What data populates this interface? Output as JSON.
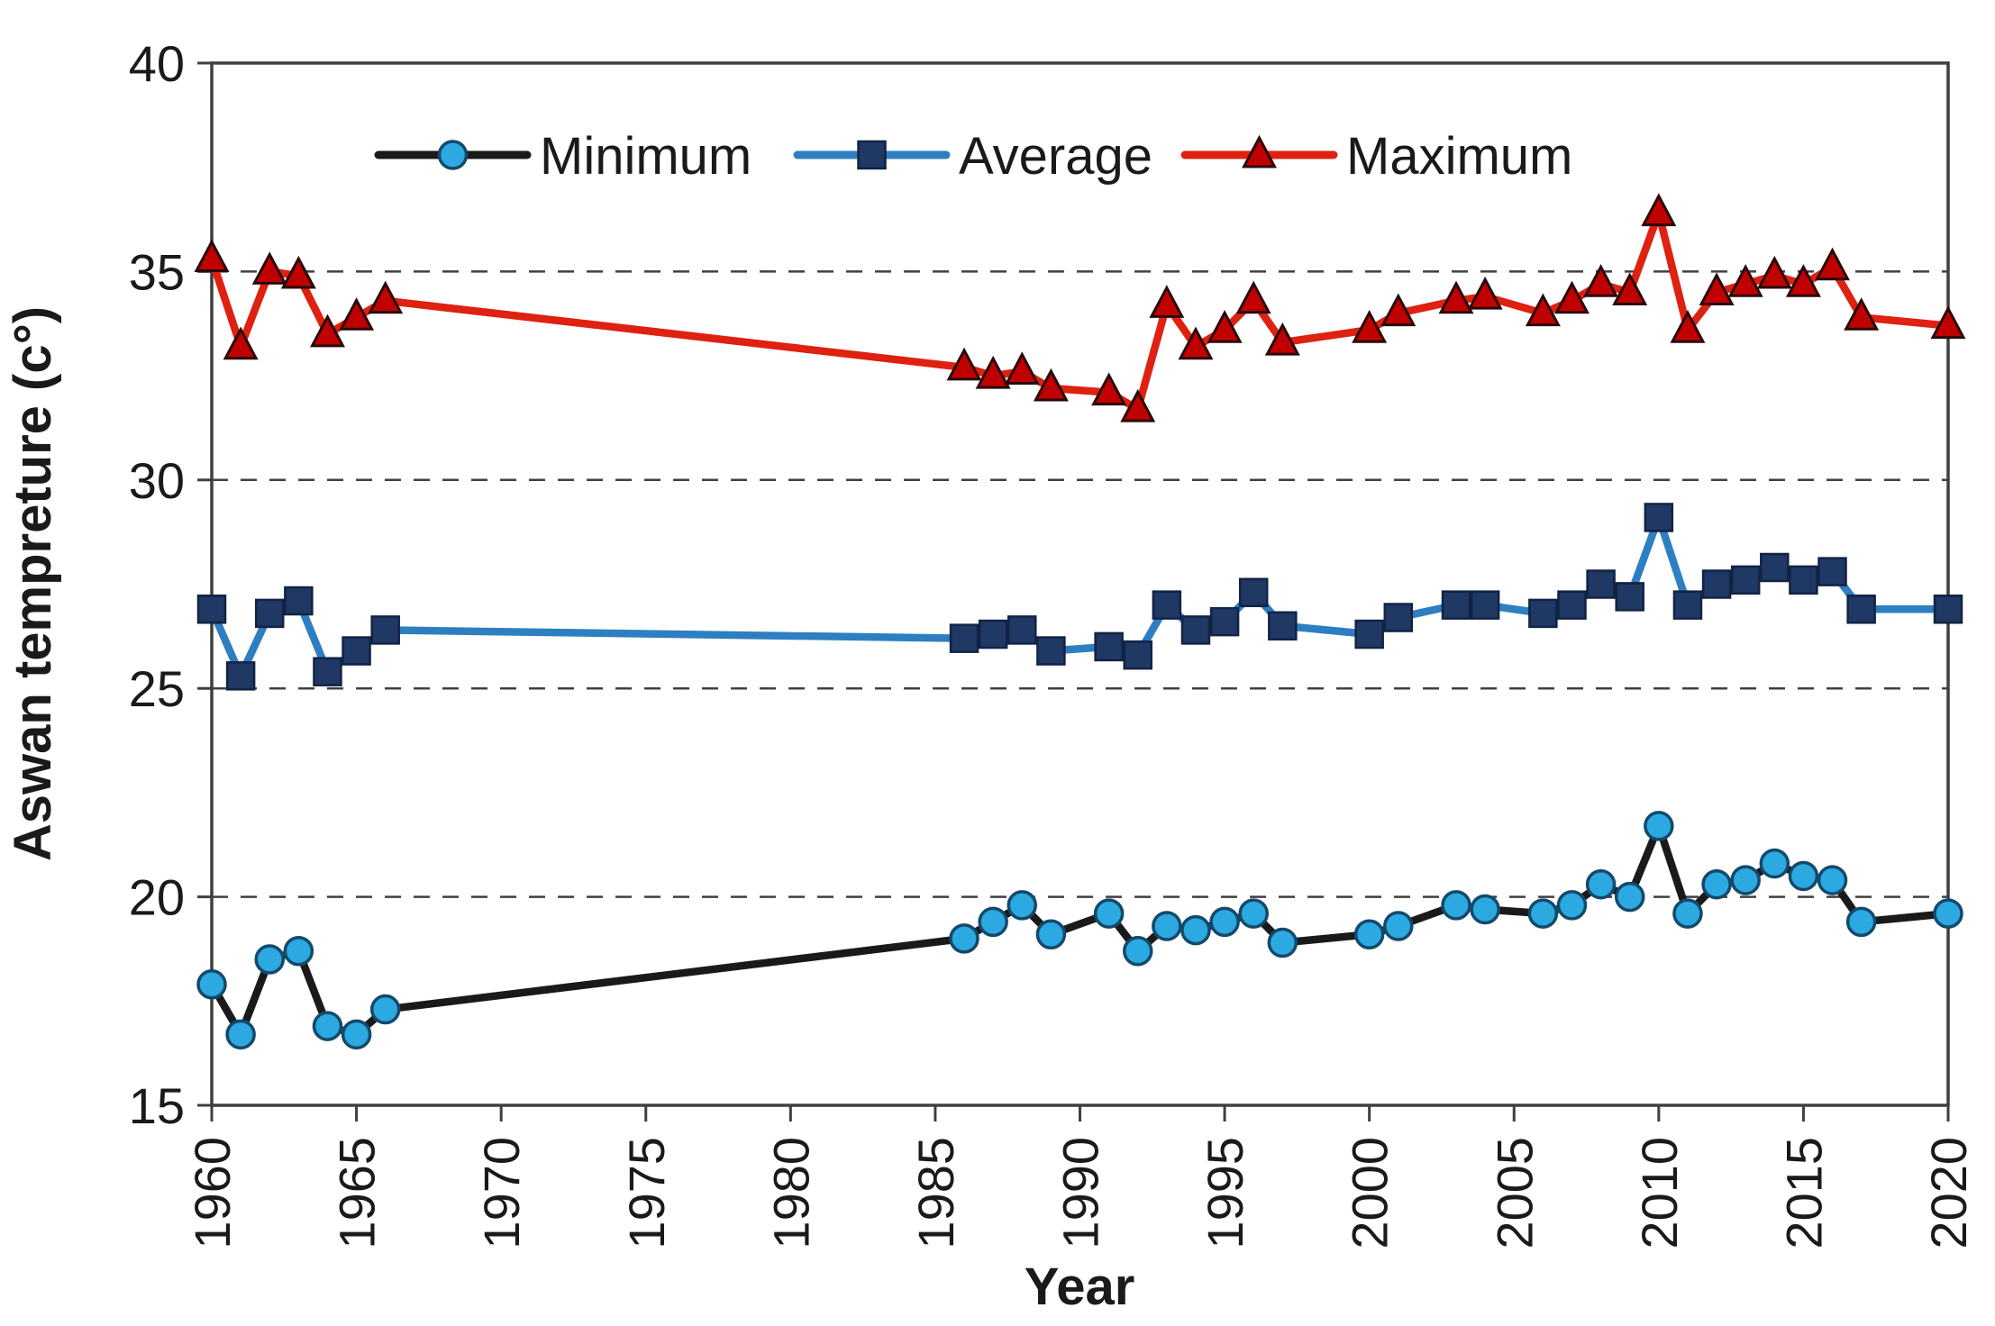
{
  "figure": {
    "background": "#ffffff",
    "border_color": "#3f3f3f",
    "grid_color": "#404040",
    "text_color": "#1a1a1a"
  },
  "chart_data": {
    "type": "line",
    "title": "",
    "xlabel": "Year",
    "ylabel": "Aswan tempreture (c°)",
    "xlim": [
      1960,
      2020
    ],
    "ylim": [
      15,
      40
    ],
    "x_ticks": [
      1960,
      1965,
      1970,
      1975,
      1980,
      1985,
      1990,
      1995,
      2000,
      2005,
      2010,
      2015,
      2020
    ],
    "y_ticks": [
      15,
      20,
      25,
      30,
      35,
      40
    ],
    "gridlines_y": [
      20,
      25,
      30,
      35
    ],
    "grid_style": "dashed",
    "legend_position": "top-center-inside",
    "x": [
      1960,
      1961,
      1962,
      1963,
      1964,
      1965,
      1966,
      1986,
      1987,
      1988,
      1989,
      1991,
      1992,
      1993,
      1994,
      1995,
      1996,
      1997,
      2000,
      2001,
      2003,
      2004,
      2006,
      2007,
      2008,
      2009,
      2010,
      2011,
      2012,
      2013,
      2014,
      2015,
      2016,
      2017,
      2020
    ],
    "series": [
      {
        "name": "Minimum",
        "marker": "circle",
        "line_color": "#1a1a1a",
        "marker_fill": "#2BA9E0",
        "marker_stroke": "#14496b",
        "values": [
          17.9,
          16.7,
          18.5,
          18.7,
          16.9,
          16.7,
          17.3,
          19.0,
          19.4,
          19.8,
          19.1,
          19.6,
          18.7,
          19.3,
          19.2,
          19.4,
          19.6,
          18.9,
          19.1,
          19.3,
          19.8,
          19.7,
          19.6,
          19.8,
          20.3,
          20.0,
          21.7,
          19.6,
          20.3,
          20.4,
          20.8,
          20.5,
          20.4,
          19.4,
          19.6
        ]
      },
      {
        "name": "Average",
        "marker": "square",
        "line_color": "#2E7FC1",
        "marker_fill": "#1F3864",
        "marker_stroke": "#122345",
        "values": [
          26.9,
          25.3,
          26.8,
          27.1,
          25.4,
          25.9,
          26.4,
          26.2,
          26.3,
          26.4,
          25.9,
          26.0,
          25.8,
          27.0,
          26.4,
          26.6,
          27.3,
          26.5,
          26.3,
          26.7,
          27.0,
          27.0,
          26.8,
          27.0,
          27.5,
          27.2,
          29.1,
          27.0,
          27.5,
          27.6,
          27.9,
          27.6,
          27.8,
          26.9,
          26.9
        ]
      },
      {
        "name": "Maximum",
        "marker": "triangle",
        "line_color": "#DE2110",
        "marker_fill": "#C00000",
        "marker_stroke": "#2a0a0a",
        "values": [
          35.3,
          33.2,
          35.0,
          34.9,
          33.5,
          33.9,
          34.3,
          32.7,
          32.5,
          32.6,
          32.2,
          32.1,
          31.7,
          34.2,
          33.2,
          33.6,
          34.3,
          33.3,
          33.6,
          34.0,
          34.3,
          34.4,
          34.0,
          34.3,
          34.7,
          34.5,
          36.4,
          33.6,
          34.5,
          34.7,
          34.9,
          34.7,
          35.1,
          33.9,
          33.7
        ]
      }
    ]
  }
}
